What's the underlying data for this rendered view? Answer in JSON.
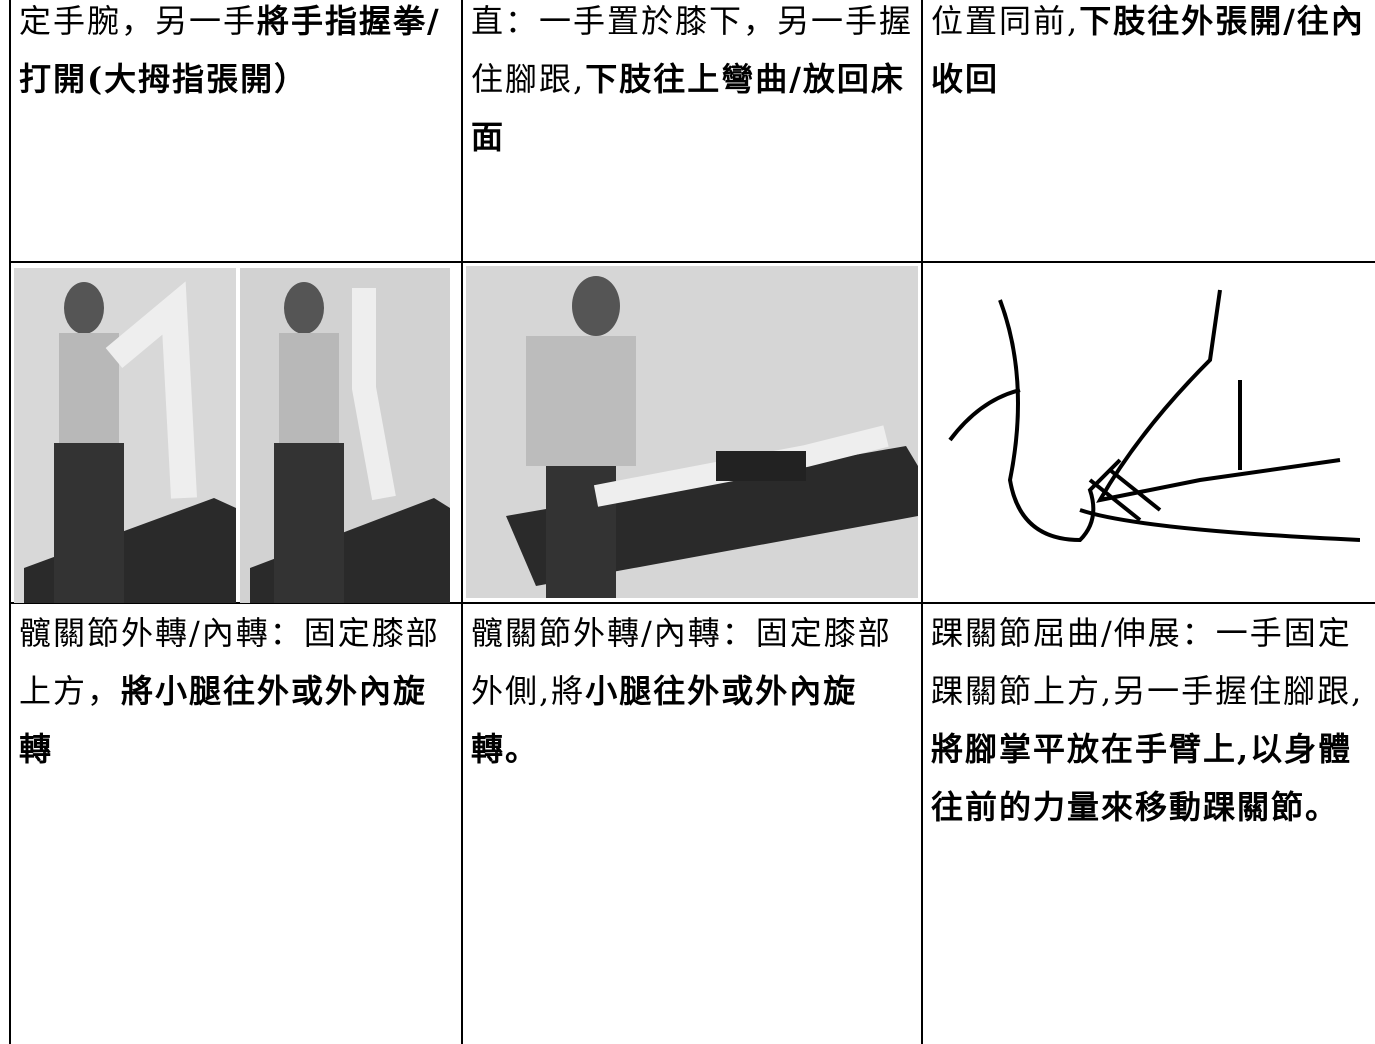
{
  "table": {
    "rows": [
      [
        [
          {
            "text": "定手腕，另一手",
            "bold": false
          },
          {
            "text": "將手指握拳/打開(大拇指張開）",
            "bold": true
          }
        ],
        [
          {
            "text": "直：一手置於膝下，另一手握住腳跟,",
            "bold": false
          },
          {
            "text": "下肢往上彎曲/放回床面",
            "bold": true
          }
        ],
        [
          {
            "text": "位置同前,",
            "bold": false
          },
          {
            "text": "下肢往外張開/往內收回",
            "bold": true
          }
        ]
      ],
      [
        [
          {
            "text": "髖關節外轉/內轉：固定膝部上方，",
            "bold": false
          },
          {
            "text": "將小腿往外或外內旋轉",
            "bold": true
          }
        ],
        [
          {
            "text": "髖關節外轉/內轉：固定膝部外側,將",
            "bold": false
          },
          {
            "text": "小腿往外或外內旋轉。",
            "bold": true
          }
        ],
        [
          {
            "text": "踝關節屈曲/伸展：一手固定踝關節上方,另一手握住腳跟,",
            "bold": false
          },
          {
            "text": "將腳掌平放在手臂上,以身體往前的力量來移動踝關節。",
            "bold": true
          }
        ]
      ]
    ]
  }
}
